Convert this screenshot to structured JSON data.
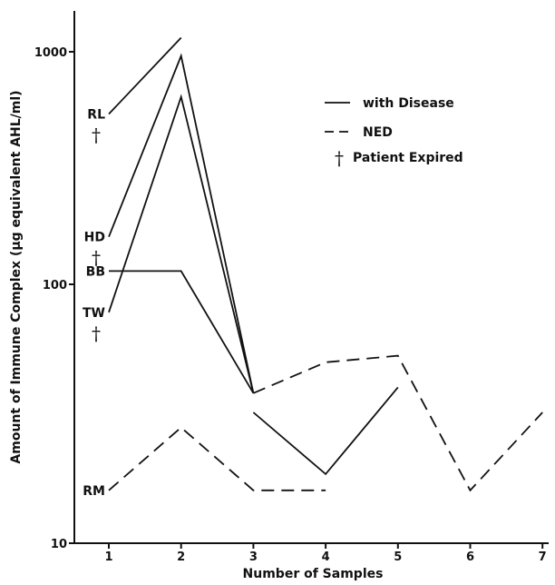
{
  "chart_data": {
    "type": "line",
    "xlabel": "Number of Samples",
    "ylabel": "Amount of Immune Complex (μg equivalent AHL/ml)",
    "y_scale": "log",
    "ylim": [
      10,
      2000
    ],
    "xlim": [
      0.7,
      7.1
    ],
    "x_ticks": [
      "1",
      "2",
      "3",
      "4",
      "5",
      "6",
      "7"
    ],
    "y_ticks": [
      "10",
      "100",
      "1000"
    ],
    "grid": false,
    "legend_position": "top-right",
    "legend": {
      "with_disease": "with Disease",
      "ned": "NED",
      "expired": "Patient Expired",
      "dagger": "†"
    },
    "series": [
      {
        "name": "RL",
        "label": "RL",
        "dagger": "†",
        "segments": [
          {
            "style": "solid",
            "points": [
              [
                1,
                540
              ],
              [
                2,
                1150
              ]
            ]
          }
        ]
      },
      {
        "name": "HD",
        "label": "HD",
        "dagger": "†",
        "segments": [
          {
            "style": "solid",
            "points": [
              [
                1,
                160
              ],
              [
                2,
                960
              ],
              [
                3,
                38
              ]
            ]
          }
        ]
      },
      {
        "name": "TW",
        "label": "TW",
        "dagger": "†",
        "segments": [
          {
            "style": "solid",
            "points": [
              [
                1,
                78
              ],
              [
                2,
                640
              ],
              [
                3,
                38
              ]
            ]
          }
        ]
      },
      {
        "name": "BB",
        "label": "BB",
        "dagger": "",
        "segments": [
          {
            "style": "solid",
            "points": [
              [
                1,
                114
              ],
              [
                2,
                114
              ],
              [
                3,
                38
              ]
            ]
          },
          {
            "style": "dashed",
            "points": [
              [
                3,
                38
              ],
              [
                4,
                50
              ],
              [
                5,
                53
              ],
              [
                6,
                16
              ],
              [
                7,
                32
              ]
            ]
          }
        ]
      },
      {
        "name": "RM",
        "label": "RM",
        "dagger": "",
        "segments": [
          {
            "style": "dashed",
            "points": [
              [
                1,
                16
              ],
              [
                2,
                28
              ],
              [
                3,
                16
              ],
              [
                4,
                16
              ]
            ]
          }
        ]
      },
      {
        "name": "",
        "label": "",
        "dagger": "",
        "segments": [
          {
            "style": "solid",
            "points": [
              [
                3,
                32
              ],
              [
                4,
                18.5
              ],
              [
                5,
                40
              ]
            ]
          }
        ]
      }
    ]
  }
}
